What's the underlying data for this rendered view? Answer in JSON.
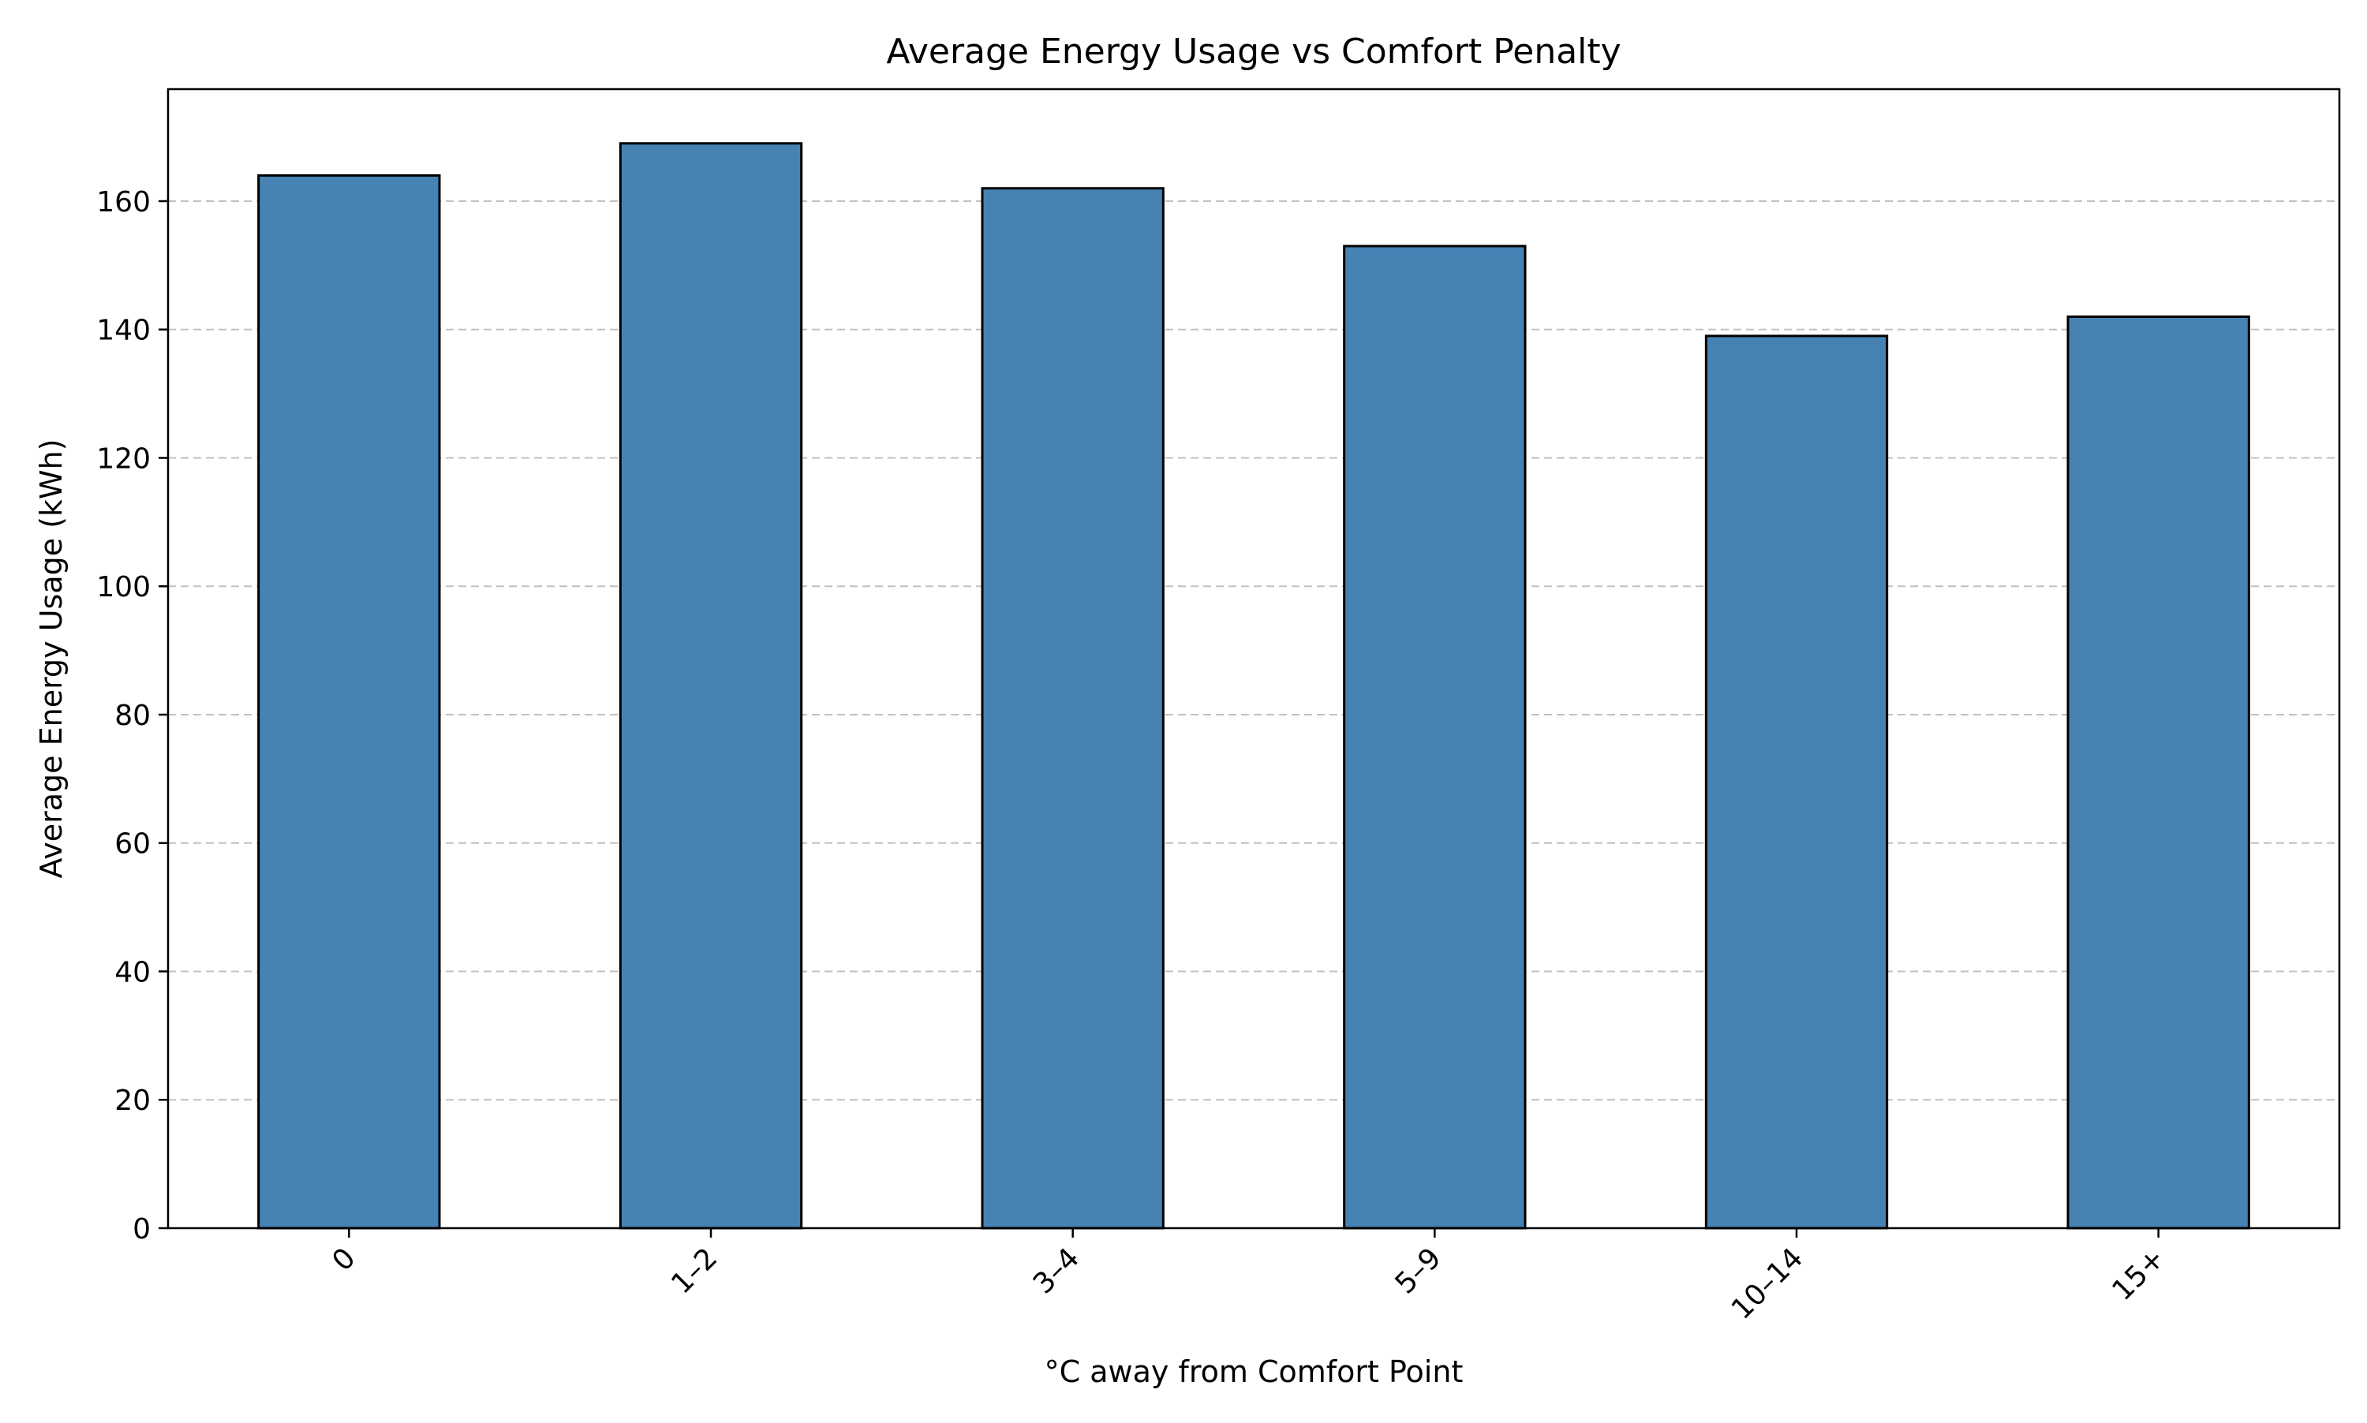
{
  "chart_data": {
    "type": "bar",
    "title": "Average Energy Usage vs Comfort Penalty",
    "xlabel": "°C away from Comfort Point",
    "ylabel": "Average Energy Usage (kWh)",
    "categories": [
      "0",
      "1–2",
      "3–4",
      "5–9",
      "10–14",
      "15+"
    ],
    "values": [
      164,
      169,
      162,
      153,
      139,
      142
    ],
    "ylim": [
      0,
      177.45
    ],
    "yticks": [
      0,
      20,
      40,
      60,
      80,
      100,
      120,
      140,
      160
    ],
    "grid": "y-dashed",
    "legend": "none",
    "colors": {
      "bar_fill": "#4682b4",
      "bar_edge": "#000000",
      "grid": "#c0c0c0"
    }
  }
}
